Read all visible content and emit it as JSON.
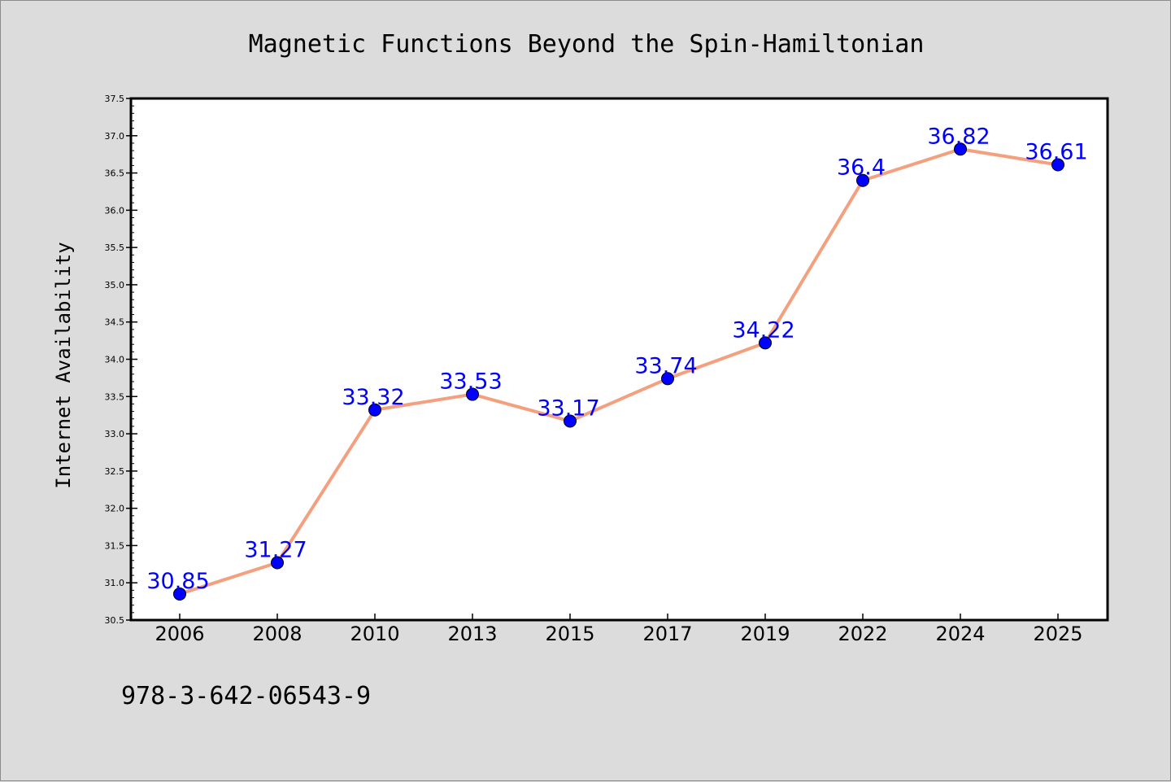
{
  "chart_data": {
    "type": "line",
    "title": "Magnetic Functions Beyond the Spin-Hamiltonian",
    "xlabel": "",
    "ylabel": "Internet Availability",
    "categories": [
      "2006",
      "2008",
      "2010",
      "2013",
      "2015",
      "2017",
      "2019",
      "2022",
      "2024",
      "2025"
    ],
    "series": [
      {
        "values": [
          30.85,
          31.27,
          33.32,
          33.53,
          33.17,
          33.74,
          34.22,
          36.4,
          36.82,
          36.61
        ],
        "labels": [
          "30.85",
          "31.27",
          "33.32",
          "33.53",
          "33.17",
          "33.74",
          "34.22",
          "36.4",
          "36.82",
          "36.61"
        ]
      }
    ],
    "ylim": [
      30.5,
      37.5
    ],
    "yticks": [
      "30.5",
      "31.0",
      "31.5",
      "32.0",
      "32.5",
      "33.0",
      "33.5",
      "34.0",
      "34.5",
      "35.0",
      "35.5",
      "36.0",
      "36.5",
      "37.0",
      "37.5"
    ],
    "grid": false,
    "legend": "none",
    "colors": {
      "line": "#f4a07e",
      "marker": "#0000ff",
      "data_label": "#0000ff",
      "background": "#dcdcdc",
      "plot_background": "#ffffff"
    }
  },
  "footer": {
    "isbn": "978-3-642-06543-9"
  }
}
